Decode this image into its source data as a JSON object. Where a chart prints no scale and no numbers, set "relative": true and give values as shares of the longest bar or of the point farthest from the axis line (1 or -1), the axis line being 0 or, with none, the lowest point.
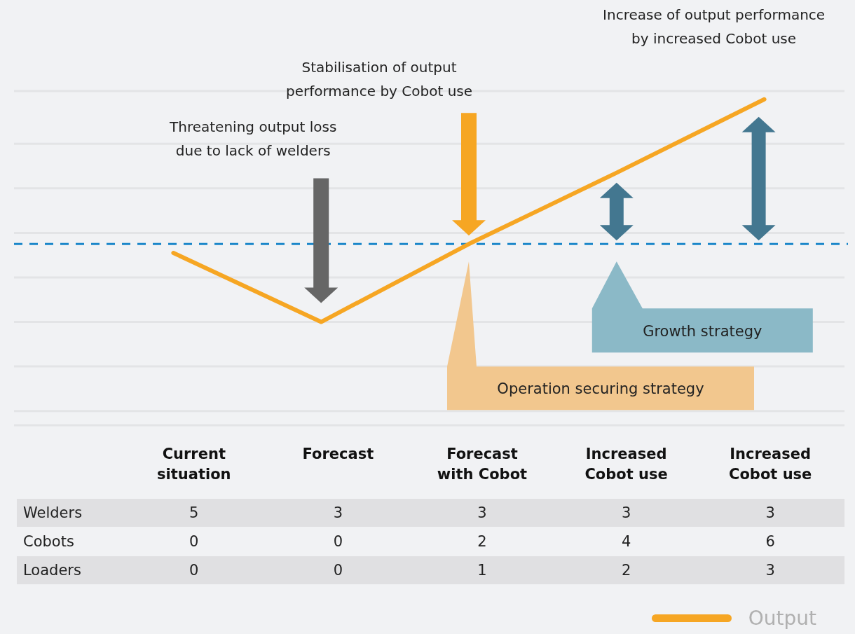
{
  "chart_data": [
    {
      "type": "line",
      "categories": [
        null,
        null,
        null,
        null,
        null
      ],
      "series": [
        {
          "name": "Output",
          "color": "#f6a623",
          "values": [
            0.31,
            0,
            0.35,
            0.67,
            1
          ]
        }
      ],
      "relative": true,
      "grid": "y",
      "legend": "bottom right",
      "marker": "none",
      "line_style": "solid",
      "ref_lines": [
        {
          "axis": "y",
          "value": 0.35,
          "color": "#1b87c9",
          "line_style": "dashed"
        }
      ],
      "annotations": [
        "Threatening output loss due to lack of welders",
        "Stabilisation of output performance by Cobot use",
        "Increase of output performance by increased Cobot use",
        "Operation securing strategy",
        "Growth strategy"
      ]
    },
    {
      "type": "heatmap",
      "categories": [
        "Current situation",
        "Forecast",
        "Forecast with Cobot",
        "Increased Cobot use",
        "Increased Cobot use"
      ],
      "y_categories": [
        "Welders",
        "Cobots",
        "Loaders"
      ],
      "cells": [
        [
          5,
          3,
          3,
          3,
          3
        ],
        [
          0,
          0,
          2,
          4,
          6
        ],
        [
          0,
          0,
          1,
          2,
          3
        ]
      ],
      "data_labels": true
    }
  ]
}
